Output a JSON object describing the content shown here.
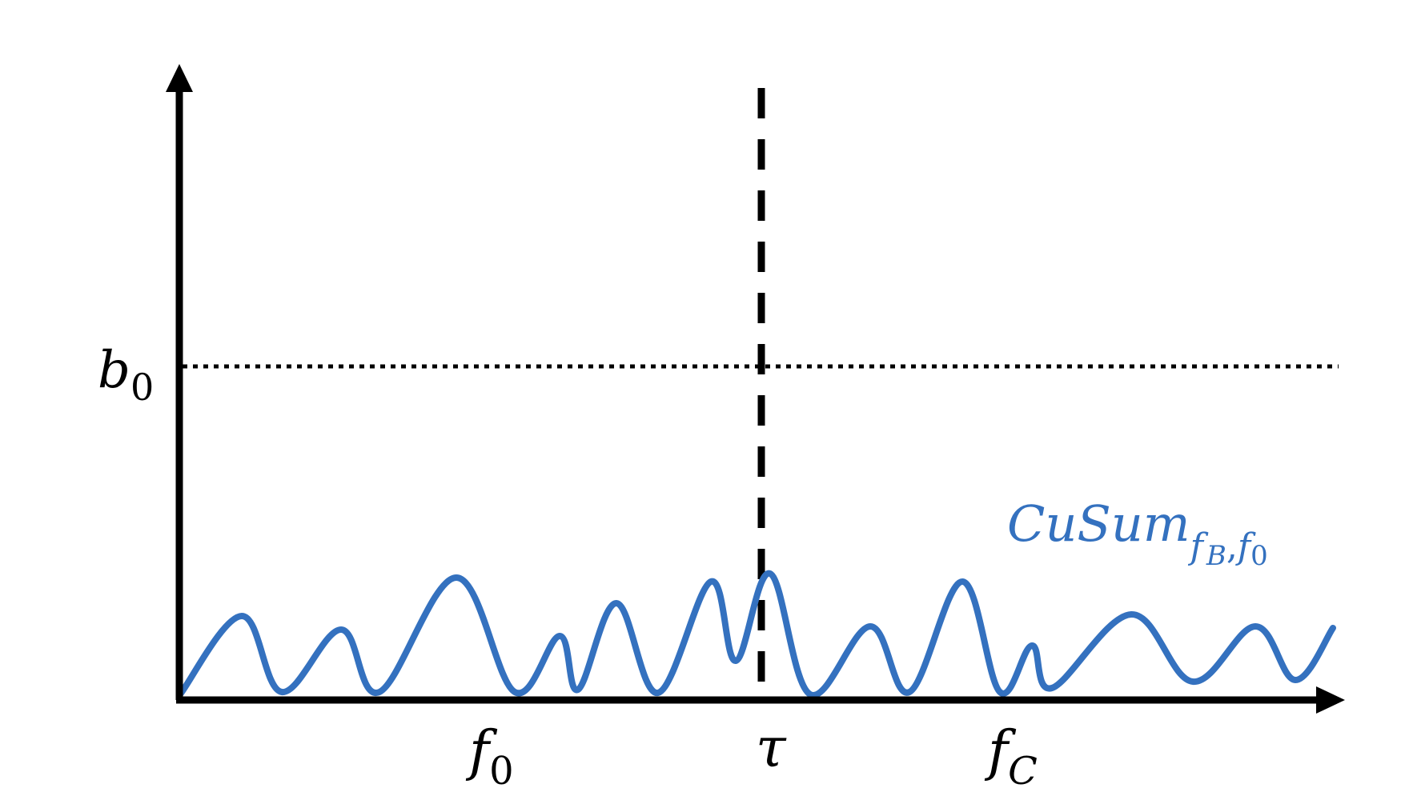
{
  "diagram": {
    "y_axis_threshold": {
      "base": "b",
      "subscript": "0"
    },
    "x_ticks": [
      {
        "base": "f",
        "subscript": "0"
      },
      {
        "base": "τ",
        "subscript": ""
      },
      {
        "base": "f",
        "subscript": "C"
      }
    ],
    "curve_label": {
      "base": "CuSum",
      "subscript_main": "f",
      "subscript_sub": "B",
      "subscript_sep": ",",
      "subscript_main2": "f",
      "subscript_sub2": "0"
    },
    "colors": {
      "axes": "#000000",
      "curve": "#3471bf",
      "threshold": "#000000",
      "changepoint": "#000000"
    }
  }
}
